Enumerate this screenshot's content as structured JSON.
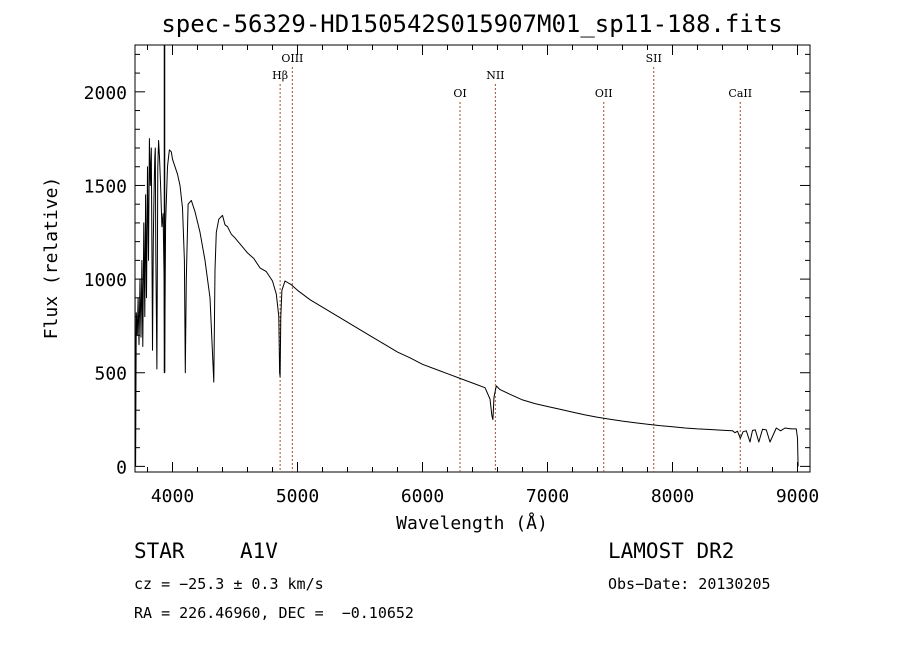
{
  "chart_data": {
    "type": "line",
    "title": "spec-56329-HD150542S015907M01_sp11-188.fits",
    "xlabel": "Wavelength (Å)",
    "ylabel": "Flux (relative)",
    "xlim": [
      3700,
      9100
    ],
    "ylim": [
      -30,
      2250
    ],
    "grid": false,
    "legend": "none",
    "x_ticks": [
      4000,
      5000,
      6000,
      7000,
      8000,
      9000
    ],
    "x_tick_labels": [
      "4000",
      "5000",
      "6000",
      "7000",
      "8000",
      "9000"
    ],
    "y_ticks": [
      0,
      500,
      1000,
      1500,
      2000
    ],
    "y_tick_labels": [
      "0",
      "500",
      "1000",
      "1500",
      "2000"
    ],
    "line_color": "#000000",
    "marker_color": "#a0522d",
    "lines": [
      {
        "label": "Hβ",
        "x": 4861,
        "label_row": 2
      },
      {
        "label": "OIII",
        "x": 4959,
        "label_row": 1
      },
      {
        "label": "OI",
        "x": 6300,
        "label_row": 3
      },
      {
        "label": "NII",
        "x": 6583,
        "label_row": 2
      },
      {
        "label": "OII",
        "x": 7450,
        "label_row": 3
      },
      {
        "label": "SII",
        "x": 7850,
        "label_row": 1
      },
      {
        "label": "CaII",
        "x": 8542,
        "label_row": 3
      }
    ],
    "series": [
      {
        "x": [
          3700,
          3705,
          3710,
          3718,
          3725,
          3732,
          3740,
          3748,
          3755,
          3762,
          3770,
          3778,
          3785,
          3792,
          3800,
          3808,
          3815,
          3822,
          3830,
          3836,
          3840,
          3846,
          3852,
          3858,
          3862,
          3866,
          3875,
          3882,
          3889,
          3896,
          3905,
          3915,
          3925,
          3933,
          3937,
          3945,
          3960,
          3968,
          3975,
          3990,
          4000,
          4020,
          4040,
          4060,
          4080,
          4095,
          4102,
          4110,
          4125,
          4150,
          4180,
          4220,
          4260,
          4300,
          4330,
          4340,
          4350,
          4370,
          4400,
          4420,
          4440,
          4470,
          4500,
          4550,
          4600,
          4650,
          4700,
          4750,
          4800,
          4830,
          4850,
          4857,
          4861,
          4866,
          4875,
          4900,
          4950,
          5000,
          5100,
          5200,
          5300,
          5400,
          5500,
          5600,
          5700,
          5800,
          5900,
          6000,
          6100,
          6200,
          6300,
          6400,
          6500,
          6540,
          6555,
          6563,
          6572,
          6590,
          6620,
          6700,
          6800,
          6900,
          7000,
          7100,
          7200,
          7300,
          7400,
          7500,
          7600,
          7700,
          7800,
          7900,
          8000,
          8100,
          8200,
          8300,
          8400,
          8480,
          8500,
          8520,
          8542,
          8565,
          8590,
          8620,
          8640,
          8662,
          8690,
          8720,
          8750,
          8780,
          8830,
          8865,
          8900,
          8950,
          8990,
          9000,
          9005
        ],
        "y": [
          1000,
          0,
          820,
          700,
          900,
          650,
          1000,
          690,
          1100,
          640,
          1300,
          800,
          1450,
          900,
          1600,
          1100,
          1750,
          1500,
          1700,
          1100,
          620,
          1200,
          1450,
          1650,
          1700,
          1150,
          520,
          1600,
          1740,
          1650,
          1500,
          1280,
          1350,
          1000,
          500,
          1300,
          1600,
          1650,
          1690,
          1680,
          1640,
          1600,
          1560,
          1500,
          1380,
          1100,
          500,
          1000,
          1400,
          1420,
          1360,
          1250,
          1100,
          900,
          450,
          1050,
          1250,
          1320,
          1340,
          1290,
          1280,
          1240,
          1220,
          1180,
          1140,
          1110,
          1060,
          1040,
          990,
          920,
          800,
          500,
          480,
          800,
          940,
          990,
          970,
          940,
          890,
          850,
          810,
          770,
          730,
          690,
          650,
          610,
          580,
          545,
          520,
          495,
          470,
          445,
          420,
          360,
          270,
          250,
          370,
          430,
          410,
          385,
          355,
          335,
          320,
          305,
          290,
          275,
          262,
          252,
          242,
          233,
          225,
          218,
          212,
          205,
          200,
          197,
          193,
          190,
          180,
          188,
          150,
          185,
          190,
          130,
          192,
          195,
          130,
          198,
          195,
          130,
          205,
          190,
          205,
          200,
          200,
          150,
          0
        ]
      }
    ]
  },
  "info": {
    "object_type": "STAR",
    "subclass": "A1V",
    "survey": "LAMOST DR2",
    "cz": "cz = −25.3 ± 0.3 km/s",
    "obs_date": "Obs−Date: 20130205",
    "radec": "RA = 226.46960, DEC =  −0.10652"
  }
}
